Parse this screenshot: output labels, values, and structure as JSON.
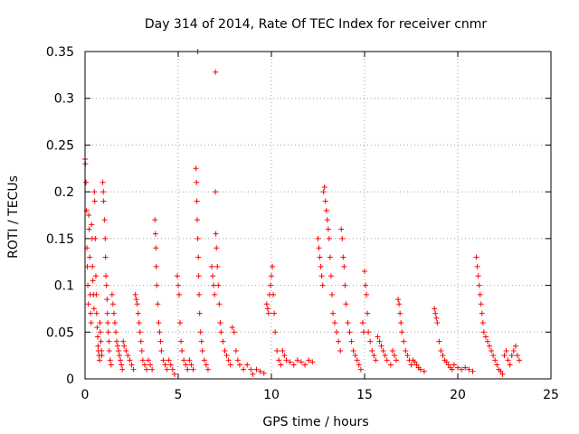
{
  "chart_data": {
    "type": "scatter",
    "title": "Day 314 of 2014, Rate Of TEC Index for receiver cnmr",
    "xlabel": "GPS time / hours",
    "ylabel": "ROTI / TECUs",
    "xlim": [
      0,
      25
    ],
    "ylim": [
      0,
      0.35
    ],
    "grid": true,
    "x_ticks": [
      0,
      5,
      10,
      15,
      20,
      25
    ],
    "x_tick_labels": [
      "0",
      "5",
      "10",
      "15",
      "20",
      "25"
    ],
    "y_ticks": [
      0,
      0.05,
      0.1,
      0.15,
      0.2,
      0.25,
      0.3,
      0.35
    ],
    "y_tick_labels": [
      "0",
      "0.05",
      "0.1",
      "0.15",
      "0.2",
      "0.25",
      "0.3",
      "0.35"
    ],
    "marker": "plus",
    "color": "#ff0000",
    "series": [
      {
        "name": "ROTI",
        "points": [
          [
            0.0,
            0.235
          ],
          [
            0.02,
            0.23
          ],
          [
            0.05,
            0.21
          ],
          [
            0.08,
            0.18
          ],
          [
            0.1,
            0.14
          ],
          [
            0.12,
            0.12
          ],
          [
            0.15,
            0.1
          ],
          [
            0.18,
            0.08
          ],
          [
            0.2,
            0.175
          ],
          [
            0.22,
            0.16
          ],
          [
            0.25,
            0.13
          ],
          [
            0.28,
            0.09
          ],
          [
            0.3,
            0.07
          ],
          [
            0.33,
            0.06
          ],
          [
            0.35,
            0.165
          ],
          [
            0.38,
            0.15
          ],
          [
            0.4,
            0.12
          ],
          [
            0.42,
            0.105
          ],
          [
            0.45,
            0.09
          ],
          [
            0.48,
            0.075
          ],
          [
            0.5,
            0.2
          ],
          [
            0.52,
            0.19
          ],
          [
            0.55,
            0.15
          ],
          [
            0.58,
            0.11
          ],
          [
            0.6,
            0.09
          ],
          [
            0.62,
            0.07
          ],
          [
            0.65,
            0.055
          ],
          [
            0.68,
            0.045
          ],
          [
            0.7,
            0.035
          ],
          [
            0.72,
            0.03
          ],
          [
            0.75,
            0.025
          ],
          [
            0.78,
            0.02
          ],
          [
            0.8,
            0.06
          ],
          [
            0.82,
            0.05
          ],
          [
            0.85,
            0.04
          ],
          [
            0.88,
            0.03
          ],
          [
            0.9,
            0.025
          ],
          [
            0.95,
            0.21
          ],
          [
            0.98,
            0.2
          ],
          [
            1.0,
            0.19
          ],
          [
            1.05,
            0.17
          ],
          [
            1.08,
            0.15
          ],
          [
            1.1,
            0.13
          ],
          [
            1.12,
            0.11
          ],
          [
            1.15,
            0.1
          ],
          [
            1.18,
            0.085
          ],
          [
            1.2,
            0.07
          ],
          [
            1.22,
            0.06
          ],
          [
            1.25,
            0.05
          ],
          [
            1.28,
            0.04
          ],
          [
            1.3,
            0.03
          ],
          [
            1.35,
            0.02
          ],
          [
            1.4,
            0.015
          ],
          [
            1.45,
            0.09
          ],
          [
            1.5,
            0.08
          ],
          [
            1.55,
            0.07
          ],
          [
            1.6,
            0.06
          ],
          [
            1.65,
            0.05
          ],
          [
            1.7,
            0.04
          ],
          [
            1.75,
            0.035
          ],
          [
            1.8,
            0.03
          ],
          [
            1.85,
            0.025
          ],
          [
            1.9,
            0.02
          ],
          [
            1.95,
            0.015
          ],
          [
            2.0,
            0.01
          ],
          [
            2.05,
            0.04
          ],
          [
            2.1,
            0.035
          ],
          [
            2.2,
            0.03
          ],
          [
            2.3,
            0.025
          ],
          [
            2.4,
            0.02
          ],
          [
            2.5,
            0.015
          ],
          [
            2.6,
            0.01
          ],
          [
            2.7,
            0.09
          ],
          [
            2.75,
            0.085
          ],
          [
            2.8,
            0.08
          ],
          [
            2.85,
            0.07
          ],
          [
            2.9,
            0.06
          ],
          [
            2.95,
            0.05
          ],
          [
            3.0,
            0.04
          ],
          [
            3.05,
            0.03
          ],
          [
            3.1,
            0.02
          ],
          [
            3.2,
            0.015
          ],
          [
            3.3,
            0.01
          ],
          [
            3.4,
            0.02
          ],
          [
            3.5,
            0.015
          ],
          [
            3.6,
            0.01
          ],
          [
            3.75,
            0.17
          ],
          [
            3.78,
            0.155
          ],
          [
            3.8,
            0.14
          ],
          [
            3.82,
            0.12
          ],
          [
            3.85,
            0.1
          ],
          [
            3.9,
            0.08
          ],
          [
            3.95,
            0.06
          ],
          [
            4.0,
            0.05
          ],
          [
            4.05,
            0.04
          ],
          [
            4.1,
            0.03
          ],
          [
            4.2,
            0.02
          ],
          [
            4.3,
            0.015
          ],
          [
            4.4,
            0.01
          ],
          [
            4.5,
            0.02
          ],
          [
            4.6,
            0.015
          ],
          [
            4.7,
            0.01
          ],
          [
            4.8,
            0.005
          ],
          [
            4.95,
            0.11
          ],
          [
            5.0,
            0.1
          ],
          [
            5.05,
            0.09
          ],
          [
            5.1,
            0.06
          ],
          [
            5.15,
            0.04
          ],
          [
            5.2,
            0.03
          ],
          [
            5.3,
            0.02
          ],
          [
            5.4,
            0.015
          ],
          [
            5.5,
            0.01
          ],
          [
            5.6,
            0.02
          ],
          [
            5.7,
            0.015
          ],
          [
            5.8,
            0.01
          ],
          [
            5.95,
            0.225
          ],
          [
            5.98,
            0.21
          ],
          [
            6.0,
            0.19
          ],
          [
            6.02,
            0.17
          ],
          [
            6.05,
            0.15
          ],
          [
            6.08,
            0.13
          ],
          [
            6.1,
            0.11
          ],
          [
            6.12,
            0.09
          ],
          [
            6.15,
            0.07
          ],
          [
            6.2,
            0.05
          ],
          [
            6.25,
            0.04
          ],
          [
            6.3,
            0.03
          ],
          [
            6.4,
            0.02
          ],
          [
            6.5,
            0.015
          ],
          [
            6.6,
            0.01
          ],
          [
            6.8,
            0.12
          ],
          [
            6.85,
            0.11
          ],
          [
            6.9,
            0.1
          ],
          [
            6.95,
            0.09
          ],
          [
            7.0,
            0.2
          ],
          [
            7.02,
            0.155
          ],
          [
            7.05,
            0.14
          ],
          [
            7.1,
            0.12
          ],
          [
            7.15,
            0.1
          ],
          [
            7.2,
            0.08
          ],
          [
            7.25,
            0.06
          ],
          [
            7.3,
            0.05
          ],
          [
            7.4,
            0.04
          ],
          [
            7.5,
            0.03
          ],
          [
            7.6,
            0.025
          ],
          [
            7.7,
            0.02
          ],
          [
            7.8,
            0.015
          ],
          [
            7.9,
            0.055
          ],
          [
            8.0,
            0.05
          ],
          [
            8.1,
            0.03
          ],
          [
            8.2,
            0.02
          ],
          [
            8.3,
            0.015
          ],
          [
            8.5,
            0.01
          ],
          [
            8.7,
            0.015
          ],
          [
            8.9,
            0.01
          ],
          [
            9.0,
            0.005
          ],
          [
            9.2,
            0.01
          ],
          [
            9.4,
            0.008
          ],
          [
            9.6,
            0.006
          ],
          [
            9.75,
            0.08
          ],
          [
            9.8,
            0.075
          ],
          [
            9.85,
            0.07
          ],
          [
            9.9,
            0.09
          ],
          [
            9.95,
            0.1
          ],
          [
            10.0,
            0.11
          ],
          [
            10.05,
            0.12
          ],
          [
            10.1,
            0.09
          ],
          [
            10.15,
            0.07
          ],
          [
            10.2,
            0.05
          ],
          [
            10.3,
            0.03
          ],
          [
            10.4,
            0.02
          ],
          [
            10.5,
            0.015
          ],
          [
            10.6,
            0.03
          ],
          [
            10.7,
            0.025
          ],
          [
            10.8,
            0.02
          ],
          [
            11.0,
            0.018
          ],
          [
            11.2,
            0.015
          ],
          [
            11.4,
            0.02
          ],
          [
            11.6,
            0.018
          ],
          [
            11.8,
            0.015
          ],
          [
            12.0,
            0.02
          ],
          [
            12.2,
            0.018
          ],
          [
            12.5,
            0.15
          ],
          [
            12.55,
            0.14
          ],
          [
            12.6,
            0.13
          ],
          [
            12.65,
            0.12
          ],
          [
            12.7,
            0.11
          ],
          [
            12.75,
            0.1
          ],
          [
            12.8,
            0.2
          ],
          [
            12.85,
            0.205
          ],
          [
            12.9,
            0.19
          ],
          [
            12.95,
            0.18
          ],
          [
            13.0,
            0.17
          ],
          [
            13.05,
            0.16
          ],
          [
            13.1,
            0.15
          ],
          [
            13.15,
            0.13
          ],
          [
            13.2,
            0.11
          ],
          [
            13.25,
            0.09
          ],
          [
            13.3,
            0.07
          ],
          [
            13.4,
            0.06
          ],
          [
            13.5,
            0.05
          ],
          [
            13.6,
            0.04
          ],
          [
            13.7,
            0.03
          ],
          [
            13.75,
            0.16
          ],
          [
            13.8,
            0.15
          ],
          [
            13.85,
            0.13
          ],
          [
            13.9,
            0.12
          ],
          [
            13.95,
            0.1
          ],
          [
            14.0,
            0.08
          ],
          [
            14.1,
            0.06
          ],
          [
            14.2,
            0.05
          ],
          [
            14.3,
            0.04
          ],
          [
            14.4,
            0.03
          ],
          [
            14.5,
            0.025
          ],
          [
            14.6,
            0.02
          ],
          [
            14.7,
            0.015
          ],
          [
            14.8,
            0.01
          ],
          [
            14.9,
            0.06
          ],
          [
            14.95,
            0.05
          ],
          [
            15.0,
            0.115
          ],
          [
            15.05,
            0.1
          ],
          [
            15.1,
            0.09
          ],
          [
            15.15,
            0.07
          ],
          [
            15.2,
            0.05
          ],
          [
            15.3,
            0.04
          ],
          [
            15.4,
            0.03
          ],
          [
            15.5,
            0.025
          ],
          [
            15.6,
            0.02
          ],
          [
            15.7,
            0.045
          ],
          [
            15.8,
            0.04
          ],
          [
            15.9,
            0.035
          ],
          [
            16.0,
            0.03
          ],
          [
            16.1,
            0.025
          ],
          [
            16.2,
            0.02
          ],
          [
            16.4,
            0.015
          ],
          [
            16.5,
            0.03
          ],
          [
            16.6,
            0.025
          ],
          [
            16.7,
            0.02
          ],
          [
            16.8,
            0.085
          ],
          [
            16.85,
            0.08
          ],
          [
            16.9,
            0.07
          ],
          [
            16.95,
            0.06
          ],
          [
            17.0,
            0.05
          ],
          [
            17.1,
            0.04
          ],
          [
            17.2,
            0.03
          ],
          [
            17.3,
            0.025
          ],
          [
            17.4,
            0.02
          ],
          [
            17.5,
            0.015
          ],
          [
            17.6,
            0.02
          ],
          [
            17.7,
            0.018
          ],
          [
            17.8,
            0.015
          ],
          [
            17.9,
            0.012
          ],
          [
            18.0,
            0.01
          ],
          [
            18.2,
            0.008
          ],
          [
            18.75,
            0.075
          ],
          [
            18.8,
            0.07
          ],
          [
            18.85,
            0.065
          ],
          [
            18.9,
            0.06
          ],
          [
            19.0,
            0.04
          ],
          [
            19.1,
            0.03
          ],
          [
            19.2,
            0.025
          ],
          [
            19.3,
            0.02
          ],
          [
            19.4,
            0.018
          ],
          [
            19.5,
            0.015
          ],
          [
            19.6,
            0.012
          ],
          [
            19.7,
            0.01
          ],
          [
            19.8,
            0.015
          ],
          [
            20.0,
            0.012
          ],
          [
            20.2,
            0.01
          ],
          [
            20.4,
            0.012
          ],
          [
            20.6,
            0.01
          ],
          [
            20.8,
            0.008
          ],
          [
            21.0,
            0.13
          ],
          [
            21.05,
            0.12
          ],
          [
            21.1,
            0.11
          ],
          [
            21.15,
            0.1
          ],
          [
            21.2,
            0.09
          ],
          [
            21.25,
            0.08
          ],
          [
            21.3,
            0.07
          ],
          [
            21.35,
            0.06
          ],
          [
            21.4,
            0.05
          ],
          [
            21.5,
            0.045
          ],
          [
            21.6,
            0.04
          ],
          [
            21.7,
            0.035
          ],
          [
            21.8,
            0.03
          ],
          [
            21.9,
            0.025
          ],
          [
            22.0,
            0.02
          ],
          [
            22.1,
            0.015
          ],
          [
            22.2,
            0.01
          ],
          [
            22.3,
            0.008
          ],
          [
            22.4,
            0.005
          ],
          [
            22.5,
            0.025
          ],
          [
            22.6,
            0.03
          ],
          [
            22.7,
            0.02
          ],
          [
            22.8,
            0.015
          ],
          [
            22.9,
            0.025
          ],
          [
            23.0,
            0.03
          ],
          [
            23.1,
            0.035
          ],
          [
            23.2,
            0.025
          ],
          [
            23.3,
            0.02
          ],
          [
            6.05,
            0.35
          ],
          [
            7.0,
            0.328
          ]
        ]
      }
    ]
  }
}
